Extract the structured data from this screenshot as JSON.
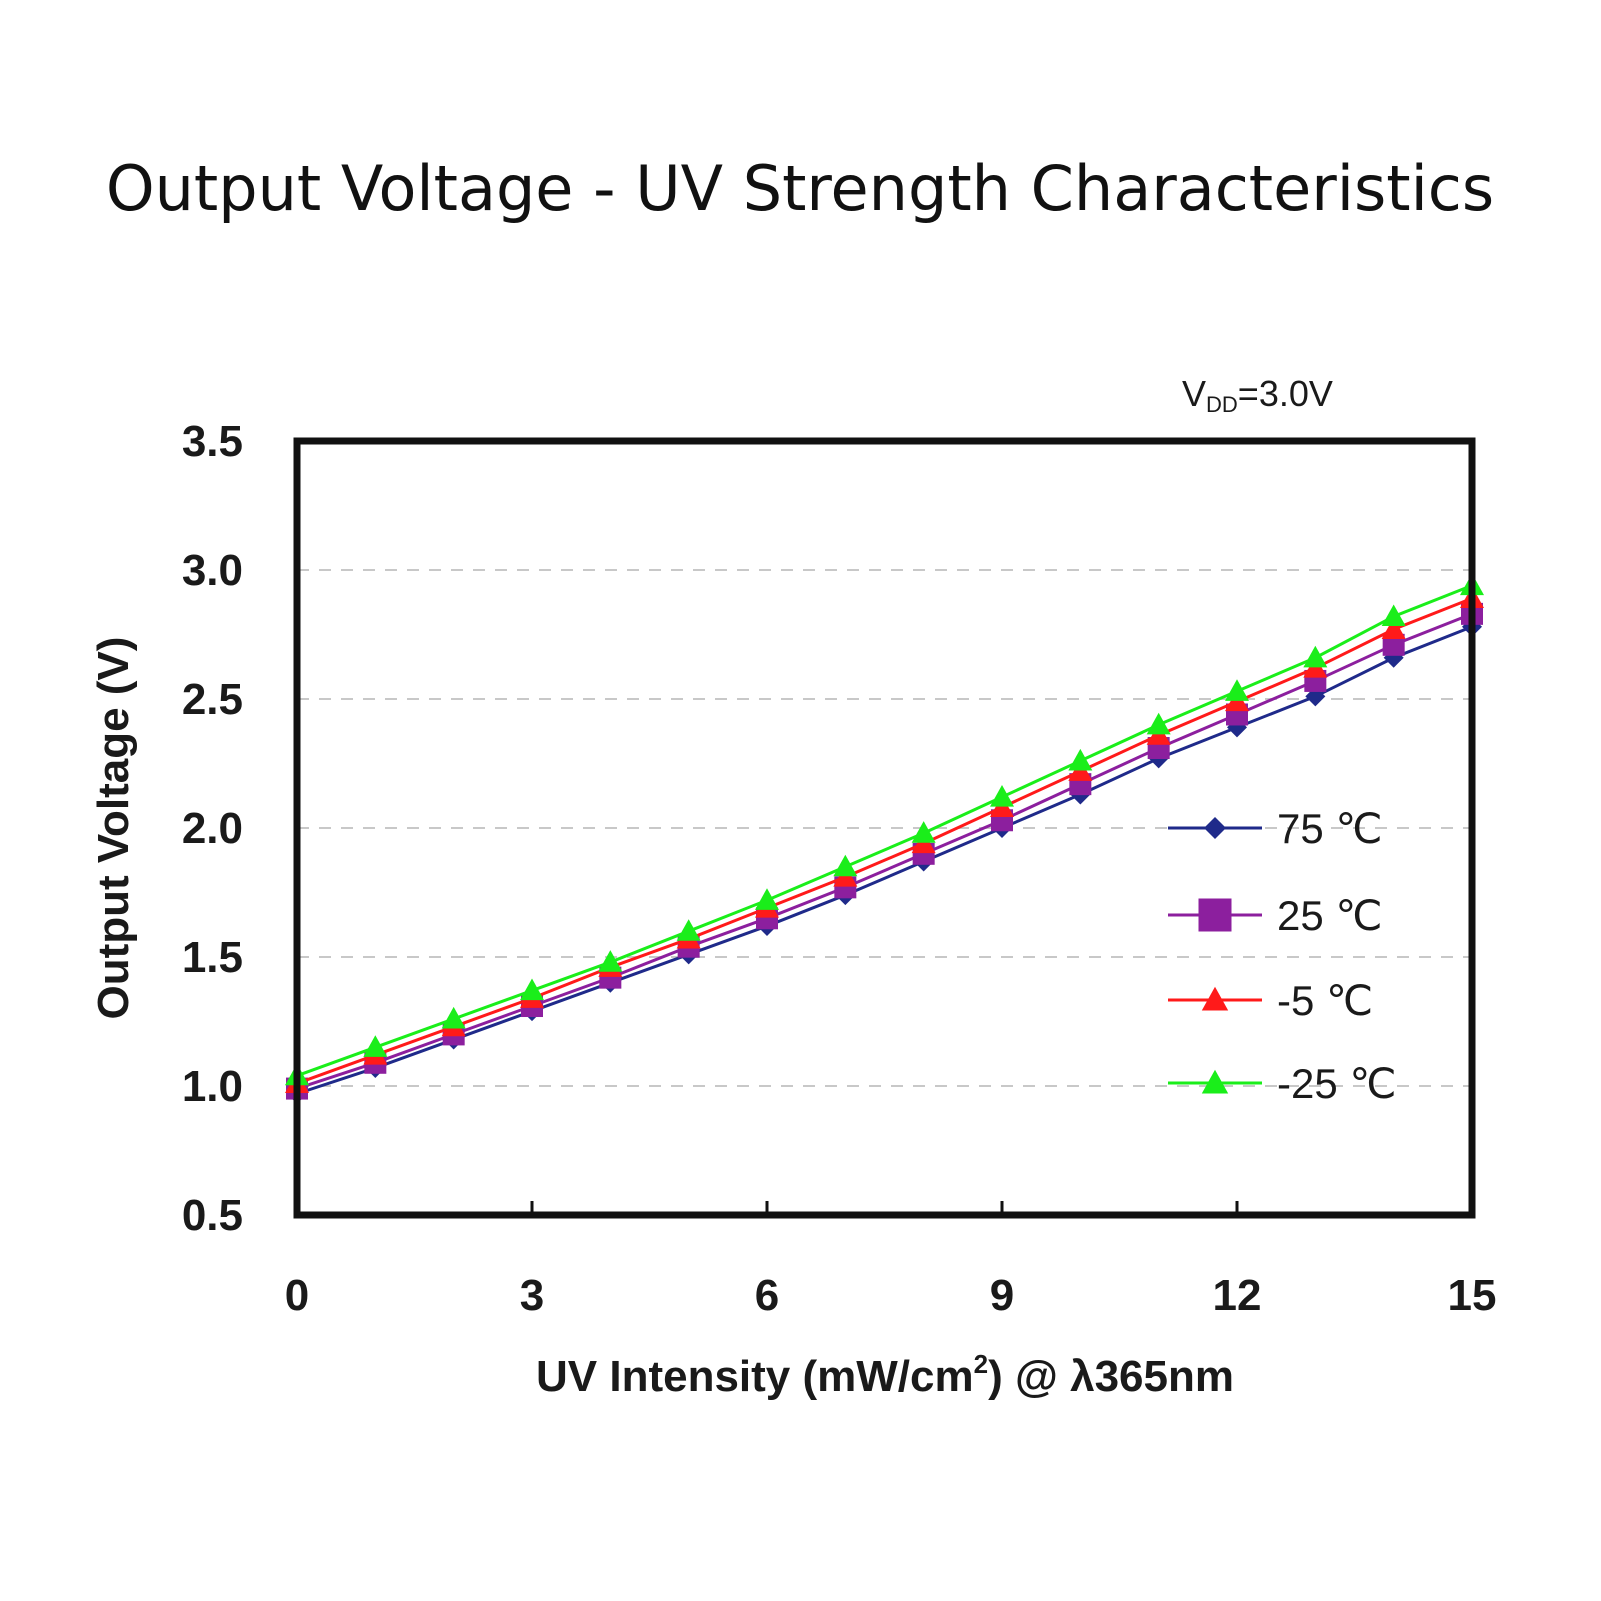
{
  "chart_data": {
    "type": "line",
    "title": "Output Voltage - UV Strength Characteristics",
    "annotation": {
      "main": "V",
      "sub": "DD",
      "rest": "=3.0V"
    },
    "xlabel": {
      "main": "UV Intensity (mW/cm",
      "sup": "2",
      "rest": ") @ λ365nm"
    },
    "ylabel": "Output Voltage (V)",
    "xlim": [
      0,
      15
    ],
    "ylim": [
      0.5,
      3.5
    ],
    "x_ticks": [
      "0",
      "3",
      "6",
      "9",
      "12",
      "15"
    ],
    "y_ticks": [
      "3.5",
      "3.0",
      "2.5",
      "2.0",
      "1.5",
      "1.0",
      "0.5"
    ],
    "grid": "horizontal dashed",
    "legend_position": "right",
    "x": [
      0,
      1,
      2,
      3,
      4,
      5,
      6,
      7,
      8,
      9,
      10,
      11,
      12,
      13,
      14,
      15
    ],
    "series": [
      {
        "name": "75 ℃",
        "marker": "diamond",
        "color": "#1f2a8a",
        "values": [
          0.97,
          1.07,
          1.18,
          1.29,
          1.4,
          1.51,
          1.62,
          1.74,
          1.87,
          2.0,
          2.13,
          2.27,
          2.39,
          2.51,
          2.66,
          2.78
        ]
      },
      {
        "name": "25 ℃",
        "marker": "square",
        "color": "#8c1f9e",
        "values": [
          0.99,
          1.09,
          1.2,
          1.31,
          1.42,
          1.54,
          1.65,
          1.77,
          1.9,
          2.03,
          2.17,
          2.31,
          2.44,
          2.57,
          2.71,
          2.83
        ]
      },
      {
        "name": "-5 ℃",
        "marker": "triangle",
        "color": "#ff1a1a",
        "values": [
          1.01,
          1.12,
          1.23,
          1.34,
          1.46,
          1.57,
          1.69,
          1.81,
          1.94,
          2.08,
          2.22,
          2.36,
          2.49,
          2.62,
          2.77,
          2.89
        ]
      },
      {
        "name": "-25 ℃",
        "marker": "triangle",
        "color": "#1aee1a",
        "values": [
          1.04,
          1.15,
          1.26,
          1.37,
          1.48,
          1.6,
          1.72,
          1.85,
          1.98,
          2.12,
          2.26,
          2.4,
          2.53,
          2.66,
          2.82,
          2.94
        ]
      }
    ]
  }
}
